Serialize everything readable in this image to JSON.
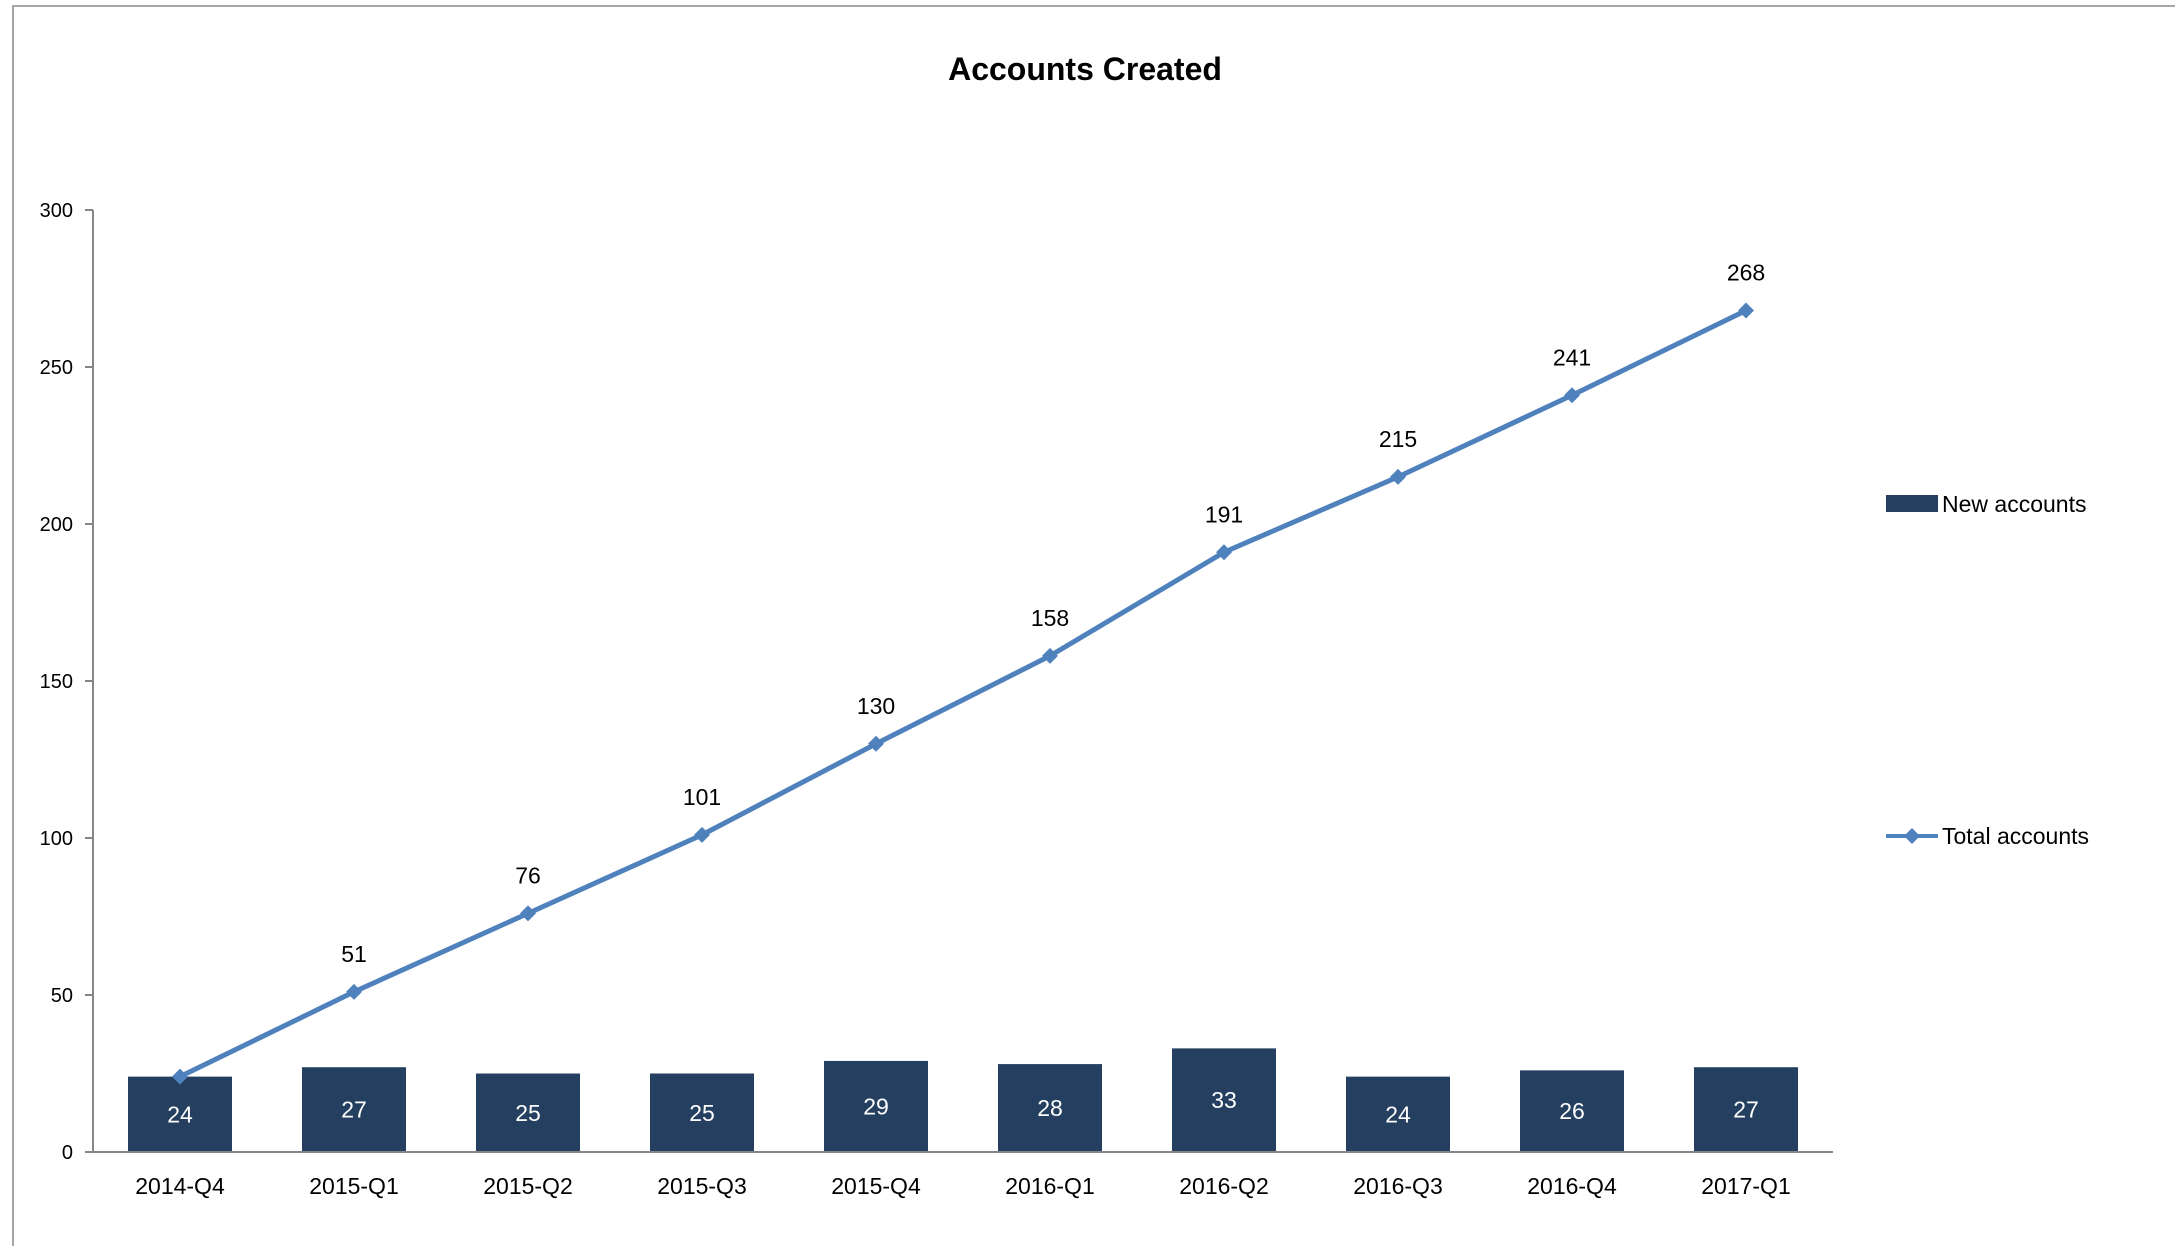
{
  "chart_data": {
    "type": "bar",
    "title": "Accounts Created",
    "xlabel": "",
    "ylabel": "",
    "ylim": [
      0,
      300
    ],
    "yticks": [
      0,
      50,
      100,
      150,
      200,
      250,
      300
    ],
    "grid": false,
    "legend_position": "right",
    "categories": [
      "2014-Q4",
      "2015-Q1",
      "2015-Q2",
      "2015-Q3",
      "2015-Q4",
      "2016-Q1",
      "2016-Q2",
      "2016-Q3",
      "2016-Q4",
      "2017-Q1"
    ],
    "series": [
      {
        "name": "New accounts",
        "type": "bar",
        "color": "#243f60",
        "values": [
          24,
          27,
          25,
          25,
          29,
          28,
          33,
          24,
          26,
          27
        ]
      },
      {
        "name": "Total accounts",
        "type": "line",
        "marker": "diamond",
        "color": "#4f81bd",
        "values": [
          24,
          51,
          76,
          101,
          130,
          158,
          191,
          215,
          241,
          268
        ]
      }
    ]
  }
}
